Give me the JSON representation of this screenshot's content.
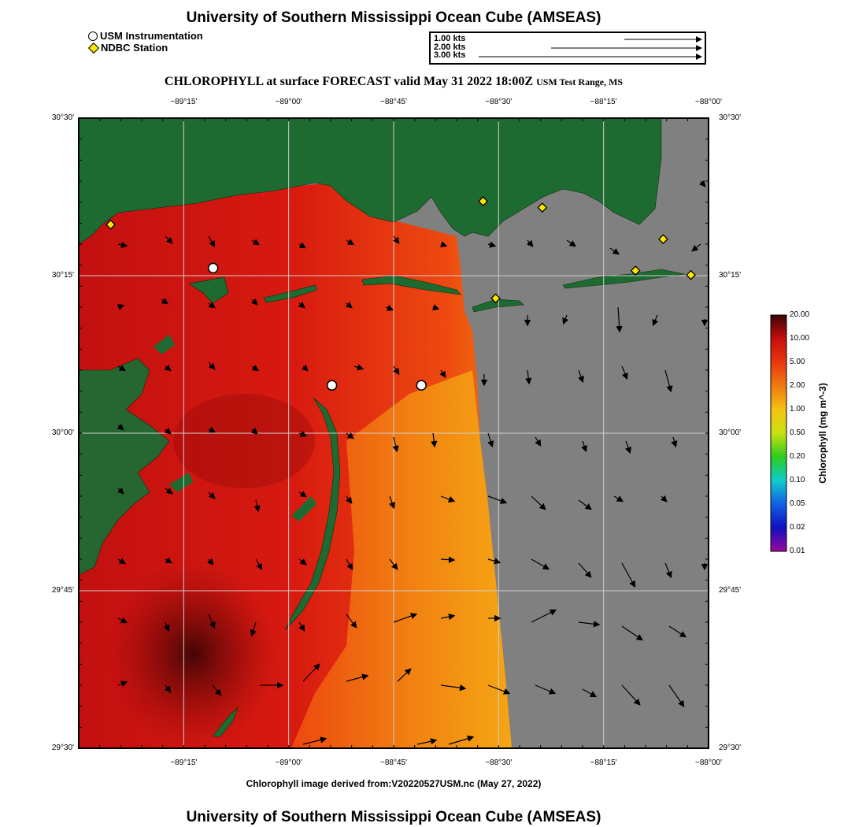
{
  "header": {
    "title": "University of Southern Mississippi Ocean Cube (AMSEAS)",
    "forecast_title": "CHLOROPHYLL at surface FORECAST valid May 31 2022 18:00Z",
    "region": "USM Test Range, MS"
  },
  "legend": {
    "usm": "USM Instrumentation",
    "ndbc": "NDBC Station",
    "usm_color": "#ffffff",
    "ndbc_color": "#ffe500"
  },
  "vector_key": [
    {
      "label": "1.00 kts",
      "speed": 1.0
    },
    {
      "label": "2.00 kts",
      "speed": 2.0
    },
    {
      "label": "3.00 kts",
      "speed": 3.0
    }
  ],
  "map": {
    "lon_range": [
      -89.5,
      -88.0
    ],
    "lat_range": [
      29.5,
      30.5
    ],
    "lon_ticks": [
      "−89°15'",
      "−89°00'",
      "−88°45'",
      "−88°30'",
      "−88°15'",
      "−88°00'"
    ],
    "lon_tick_values": [
      -89.25,
      -89.0,
      -88.75,
      -88.5,
      -88.25,
      -88.0
    ],
    "lat_ticks": [
      "30°30'",
      "30°15'",
      "30°00'",
      "29°45'",
      "29°30'"
    ],
    "lat_tick_values": [
      30.5,
      30.25,
      30.0,
      29.75,
      29.5
    ],
    "colors": {
      "land": "#1e6b32",
      "nodata": "#808080",
      "high": "#d11010",
      "mid": "#ee3c10",
      "low": "#f59a12"
    },
    "usm_stations": [
      {
        "lon": -89.18,
        "lat": 30.262
      },
      {
        "lon": -88.897,
        "lat": 30.076
      },
      {
        "lon": -88.684,
        "lat": 30.076
      }
    ],
    "ndbc_stations": [
      {
        "lon": -89.424,
        "lat": 30.331
      },
      {
        "lon": -88.537,
        "lat": 30.368
      },
      {
        "lon": -88.396,
        "lat": 30.358
      },
      {
        "lon": -88.108,
        "lat": 30.308
      },
      {
        "lon": -88.174,
        "lat": 30.258
      },
      {
        "lon": -88.042,
        "lat": 30.251
      },
      {
        "lon": -88.507,
        "lat": 30.214
      }
    ]
  },
  "colorbar": {
    "title": "Chlorophyll (mg m^-3)",
    "labels": [
      "20.00",
      "10.00",
      "5.00",
      "2.00",
      "1.00",
      "0.50",
      "0.20",
      "0.10",
      "0.05",
      "0.02",
      "0.01"
    ],
    "colors": [
      "#3a0505",
      "#c80d0d",
      "#e8380e",
      "#f07a12",
      "#f5c212",
      "#c8e012",
      "#2ecc1e",
      "#10cccc",
      "#1060e0",
      "#1010c0",
      "#5a107a",
      "#9a0a9a"
    ]
  },
  "caption": "Chlorophyll image derived from:V20220527USM.nc (May 27, 2022)"
}
